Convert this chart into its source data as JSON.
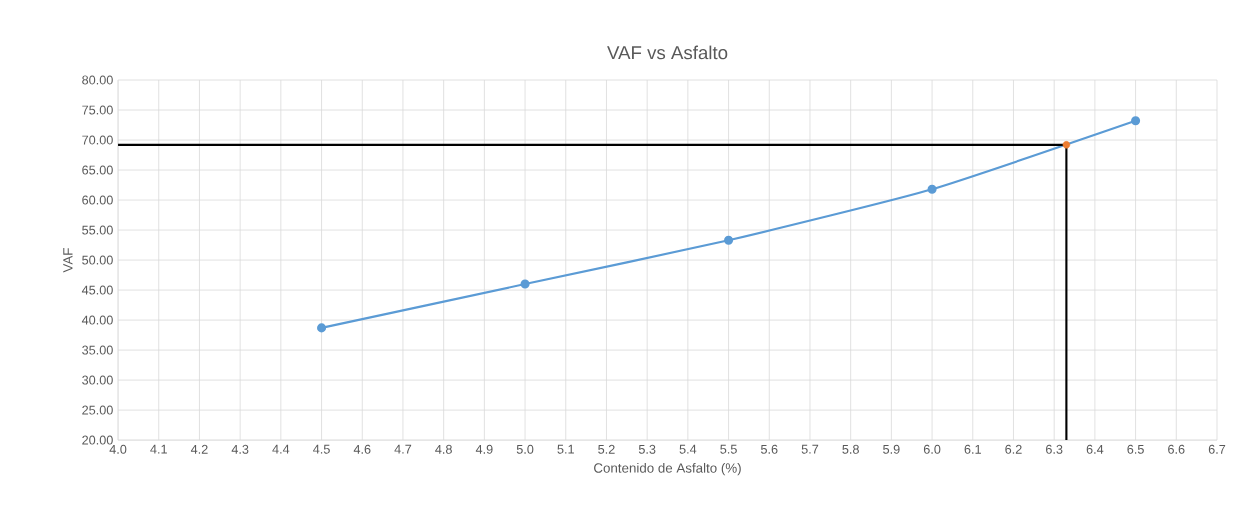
{
  "chart_data": {
    "type": "line",
    "title": "VAF vs Asfalto",
    "xlabel": "Contenido de Asfalto (%)",
    "ylabel": "VAF",
    "series": [
      {
        "color": "#5b9bd5",
        "marker": "circle",
        "x": [
          4.5,
          5.0,
          5.5,
          6.0,
          6.5
        ],
        "values": [
          38.7,
          46.0,
          53.3,
          61.8,
          73.2
        ]
      },
      {
        "color": "#000000",
        "marker": "none",
        "x": [
          4.0,
          6.33
        ],
        "values": [
          69.2,
          69.2
        ]
      },
      {
        "color": "#000000",
        "marker": "none",
        "x": [
          6.33,
          6.33
        ],
        "values": [
          20.0,
          69.2
        ]
      },
      {
        "type": "scatter",
        "color": "#ed7d31",
        "marker": "circle",
        "x": [
          6.33
        ],
        "values": [
          69.2
        ]
      }
    ],
    "xlim": [
      4.0,
      6.7
    ],
    "xticks": [
      {
        "value": 4.0,
        "label": "4.0"
      },
      4.1,
      4.2,
      4.3,
      4.4,
      4.5,
      4.6,
      4.7,
      4.8,
      4.9,
      {
        "value": 5.0,
        "label": "5.0"
      },
      5.1,
      5.2,
      5.3,
      5.4,
      5.5,
      5.6,
      5.7,
      5.8,
      5.9,
      {
        "value": 6.0,
        "label": "6.0"
      },
      6.1,
      6.2,
      6.3,
      6.4,
      6.5,
      6.6,
      6.7
    ],
    "ylim": [
      20,
      80
    ],
    "yticks": [
      {
        "value": 20,
        "label": "20.00"
      },
      {
        "value": 25,
        "label": "25.00"
      },
      {
        "value": 30,
        "label": "30.00"
      },
      {
        "value": 35,
        "label": "35.00"
      },
      {
        "value": 40,
        "label": "40.00"
      },
      {
        "value": 45,
        "label": "45.00"
      },
      {
        "value": 50,
        "label": "50.00"
      },
      {
        "value": 55,
        "label": "55.00"
      },
      {
        "value": 60,
        "label": "60.00"
      },
      {
        "value": 65,
        "label": "65.00"
      },
      {
        "value": 70,
        "label": "70.00"
      },
      {
        "value": 75,
        "label": "75.00"
      },
      {
        "value": 80,
        "label": "80.00"
      }
    ],
    "grid": true
  }
}
